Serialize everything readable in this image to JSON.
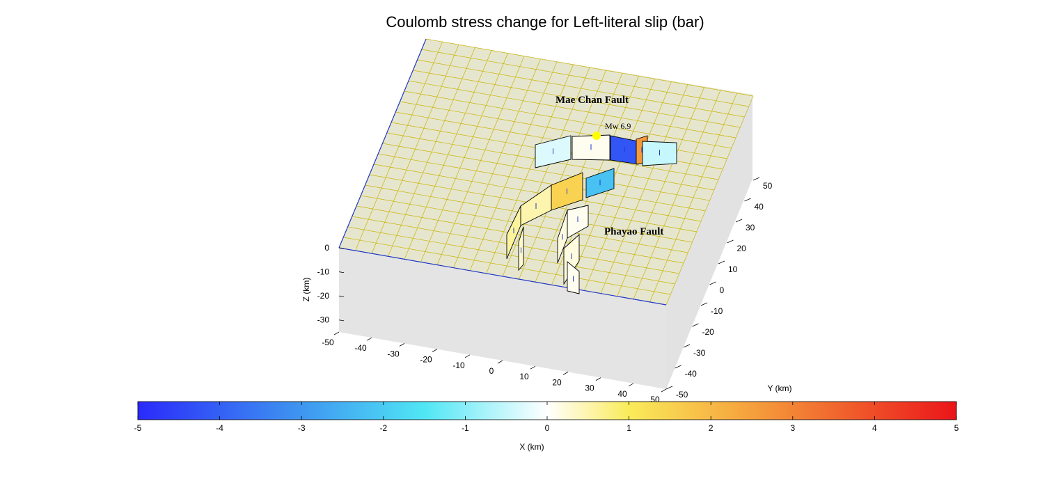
{
  "chart_data": {
    "type": "3d-surface",
    "title": "Coulomb stress change for Left-literal slip (bar)",
    "xlabel": "X (km)",
    "ylabel": "Y (km)",
    "zlabel": "Z (km)",
    "x_ticks": [
      "-50",
      "-40",
      "-30",
      "-20",
      "-10",
      "0",
      "10",
      "20",
      "30",
      "40",
      "50"
    ],
    "y_ticks": [
      "-50",
      "-40",
      "-30",
      "-20",
      "-10",
      "0",
      "10",
      "20",
      "30",
      "40",
      "50"
    ],
    "z_ticks": [
      "0",
      "-10",
      "-20",
      "-30"
    ],
    "xlim": [
      -50,
      50
    ],
    "ylim": [
      -50,
      50
    ],
    "zlim": [
      -35,
      0
    ],
    "grid": true,
    "colorbar": {
      "ticks": [
        "-5",
        "-4",
        "-3",
        "-2",
        "-1",
        "0",
        "1",
        "2",
        "3",
        "4",
        "5"
      ],
      "range": [
        -5,
        5
      ],
      "position": "bottom",
      "label": "X (km)"
    },
    "annotations": [
      {
        "text": "Mae Chan Fault"
      },
      {
        "text": "Mw 6.9"
      },
      {
        "text": "Phayao Fault"
      }
    ],
    "epicenter": {
      "label": "Mw 6.9",
      "color": "#ffff00"
    },
    "faults": [
      {
        "name": "mae-chan-1",
        "stress": -0.3
      },
      {
        "name": "mae-chan-2",
        "stress": 0.1
      },
      {
        "name": "mae-chan-3",
        "stress": -4.2
      },
      {
        "name": "mae-chan-4",
        "stress": 2.6
      },
      {
        "name": "mae-chan-5",
        "stress": -0.5
      },
      {
        "name": "central-1",
        "stress": -2.2
      },
      {
        "name": "phayao-1",
        "stress": 1.5
      },
      {
        "name": "phayao-2",
        "stress": 0.5
      },
      {
        "name": "phayao-3",
        "stress": 0.6
      },
      {
        "name": "phayao-4",
        "stress": 0.1
      },
      {
        "name": "phayao-5",
        "stress": 0.2
      },
      {
        "name": "phayao-6",
        "stress": 0.2
      },
      {
        "name": "phayao-7",
        "stress": 0.1
      },
      {
        "name": "phayao-8",
        "stress": 0.3
      }
    ],
    "colors": {
      "surface": "#e6e6cf",
      "grid": "#c8b400",
      "side": "#e4e4e4",
      "edge": "#1f37c8"
    }
  }
}
